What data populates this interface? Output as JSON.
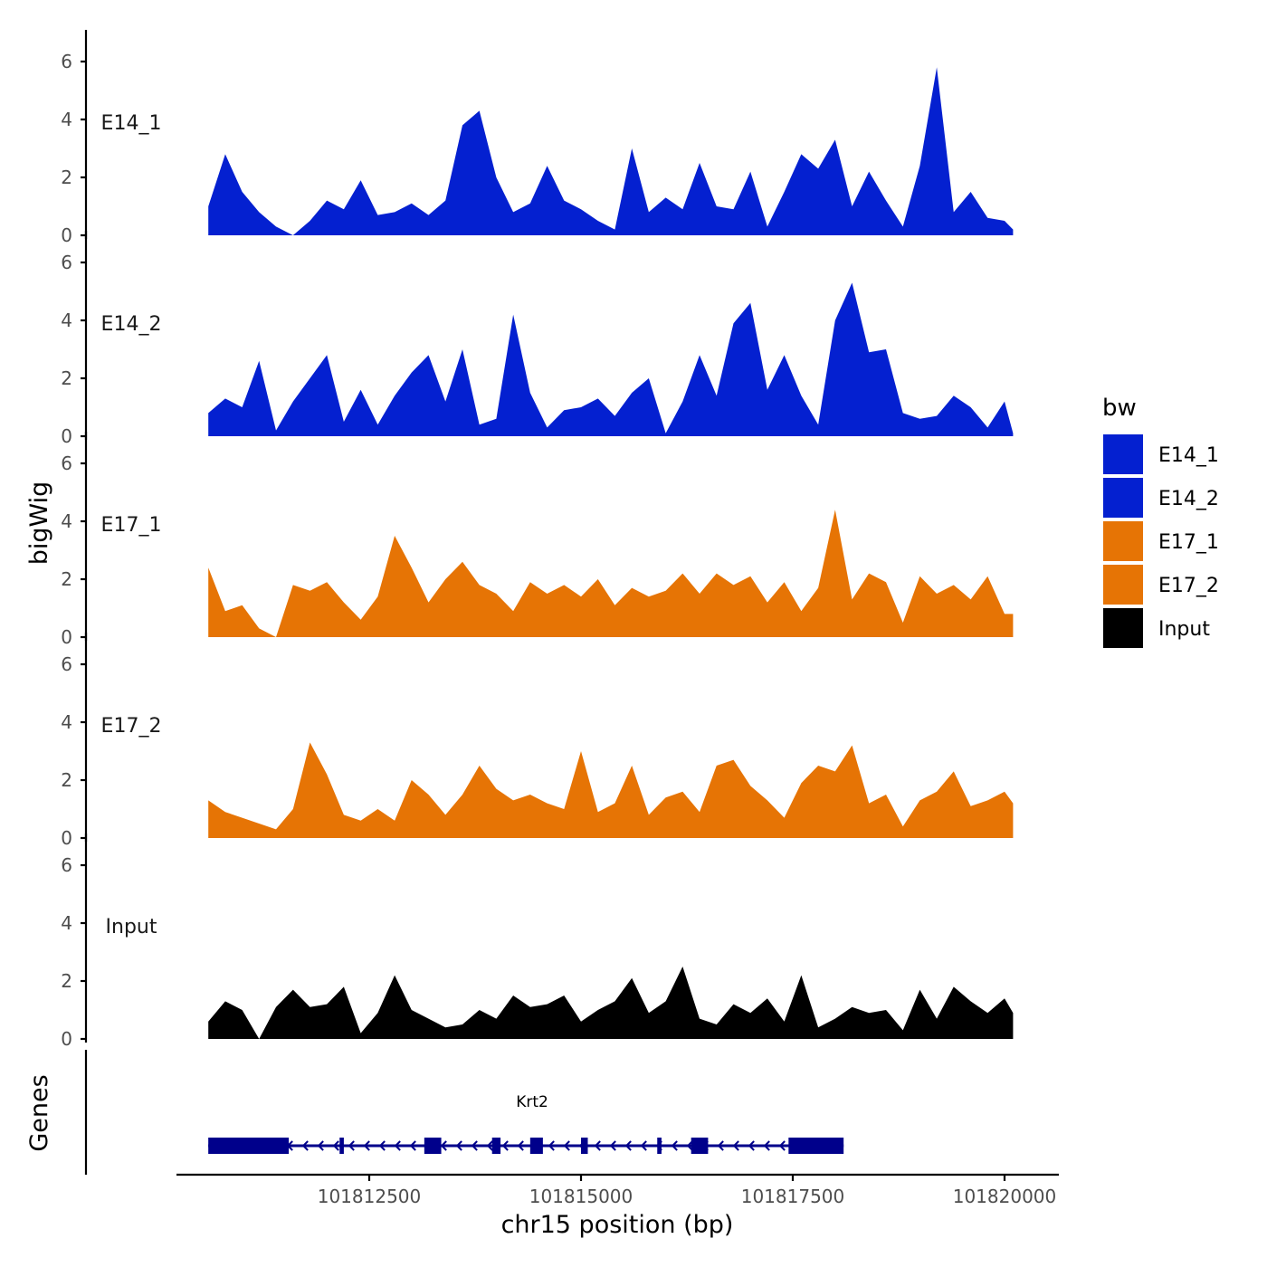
{
  "chart_data": {
    "type": "area",
    "title": "",
    "ylabel": "bigWig",
    "xlabel": "chr15 position (bp)",
    "genes_label": "Genes",
    "xlim": [
      101810500,
      101820200
    ],
    "xticks": [
      101812500,
      101815000,
      101817500,
      101820000
    ],
    "xtick_labels": [
      "101812500",
      "101815000",
      "101817500",
      "101820000"
    ],
    "ylim": [
      0,
      6
    ],
    "yticks": [
      0,
      2,
      4,
      6
    ],
    "ytick_labels": [
      "0",
      "2",
      "4",
      "6"
    ],
    "legend": {
      "title": "bw",
      "entries": [
        {
          "name": "E14_1",
          "color": "#0420D0"
        },
        {
          "name": "E14_2",
          "color": "#0420D0"
        },
        {
          "name": "E17_1",
          "color": "#E67405"
        },
        {
          "name": "E17_2",
          "color": "#E67405"
        },
        {
          "name": "Input",
          "color": "#000000"
        }
      ]
    },
    "x": [
      101810600,
      101810800,
      101811000,
      101811200,
      101811400,
      101811600,
      101811800,
      101812000,
      101812200,
      101812400,
      101812600,
      101812800,
      101813000,
      101813200,
      101813400,
      101813600,
      101813800,
      101814000,
      101814200,
      101814400,
      101814600,
      101814800,
      101815000,
      101815200,
      101815400,
      101815600,
      101815800,
      101816000,
      101816200,
      101816400,
      101816600,
      101816800,
      101817000,
      101817200,
      101817400,
      101817600,
      101817800,
      101818000,
      101818200,
      101818400,
      101818600,
      101818800,
      101819000,
      101819200,
      101819400,
      101819600,
      101819800,
      101820000,
      101820100
    ],
    "series": [
      {
        "name": "E14_1",
        "color": "#0420D0",
        "values": [
          1.0,
          2.8,
          1.5,
          0.8,
          0.3,
          0.0,
          0.5,
          1.2,
          0.9,
          1.9,
          0.7,
          0.8,
          1.1,
          0.7,
          1.2,
          3.8,
          4.3,
          2.0,
          0.8,
          1.1,
          2.4,
          1.2,
          0.9,
          0.5,
          0.2,
          3.0,
          0.8,
          1.3,
          0.9,
          2.5,
          1.0,
          0.9,
          2.2,
          0.3,
          1.5,
          2.8,
          2.3,
          3.3,
          1.0,
          2.2,
          1.2,
          0.3,
          2.4,
          5.8,
          0.8,
          1.5,
          0.6,
          0.5,
          0.2
        ]
      },
      {
        "name": "E14_2",
        "color": "#0420D0",
        "values": [
          0.8,
          1.3,
          1.0,
          2.6,
          0.2,
          1.2,
          2.0,
          2.8,
          0.5,
          1.6,
          0.4,
          1.4,
          2.2,
          2.8,
          1.2,
          3.0,
          0.4,
          0.6,
          4.2,
          1.5,
          0.3,
          0.9,
          1.0,
          1.3,
          0.7,
          1.5,
          2.0,
          0.1,
          1.2,
          2.8,
          1.4,
          3.9,
          4.6,
          1.6,
          2.8,
          1.4,
          0.4,
          4.0,
          5.3,
          2.9,
          3.0,
          0.8,
          0.6,
          0.7,
          1.4,
          1.0,
          0.3,
          1.2,
          0.1
        ]
      },
      {
        "name": "E17_1",
        "color": "#E67405",
        "values": [
          2.4,
          0.9,
          1.1,
          0.3,
          0.0,
          1.8,
          1.6,
          1.9,
          1.2,
          0.6,
          1.4,
          3.5,
          2.4,
          1.2,
          2.0,
          2.6,
          1.8,
          1.5,
          0.9,
          1.9,
          1.5,
          1.8,
          1.4,
          2.0,
          1.1,
          1.7,
          1.4,
          1.6,
          2.2,
          1.5,
          2.2,
          1.8,
          2.1,
          1.2,
          1.9,
          0.9,
          1.7,
          4.4,
          1.3,
          2.2,
          1.9,
          0.5,
          2.1,
          1.5,
          1.8,
          1.3,
          2.1,
          0.8,
          0.8
        ]
      },
      {
        "name": "E17_2",
        "color": "#E67405",
        "values": [
          1.3,
          0.9,
          0.7,
          0.5,
          0.3,
          1.0,
          3.3,
          2.2,
          0.8,
          0.6,
          1.0,
          0.6,
          2.0,
          1.5,
          0.8,
          1.5,
          2.5,
          1.7,
          1.3,
          1.5,
          1.2,
          1.0,
          3.0,
          0.9,
          1.2,
          2.5,
          0.8,
          1.4,
          1.6,
          0.9,
          2.5,
          2.7,
          1.8,
          1.3,
          0.7,
          1.9,
          2.5,
          2.3,
          3.2,
          1.2,
          1.5,
          0.4,
          1.3,
          1.6,
          2.3,
          1.1,
          1.3,
          1.6,
          1.2
        ]
      },
      {
        "name": "Input",
        "color": "#000000",
        "values": [
          0.6,
          1.3,
          1.0,
          0.0,
          1.1,
          1.7,
          1.1,
          1.2,
          1.8,
          0.2,
          0.9,
          2.2,
          1.0,
          0.7,
          0.4,
          0.5,
          1.0,
          0.7,
          1.5,
          1.1,
          1.2,
          1.5,
          0.6,
          1.0,
          1.3,
          2.1,
          0.9,
          1.3,
          2.5,
          0.7,
          0.5,
          1.2,
          0.9,
          1.4,
          0.6,
          2.2,
          0.4,
          0.7,
          1.1,
          0.9,
          1.0,
          0.3,
          1.7,
          0.7,
          1.8,
          1.3,
          0.9,
          1.4,
          0.9
        ]
      }
    ],
    "genes": [
      {
        "name": "Krt2",
        "strand": "-",
        "start": 101810600,
        "end": 101818100,
        "exons": [
          [
            101810600,
            101811550
          ],
          [
            101812150,
            101812200
          ],
          [
            101813150,
            101813350
          ],
          [
            101813950,
            101814050
          ],
          [
            101814400,
            101814550
          ],
          [
            101815000,
            101815080
          ],
          [
            101815900,
            101815950
          ],
          [
            101816300,
            101816500
          ],
          [
            101817450,
            101818100
          ]
        ]
      }
    ]
  }
}
